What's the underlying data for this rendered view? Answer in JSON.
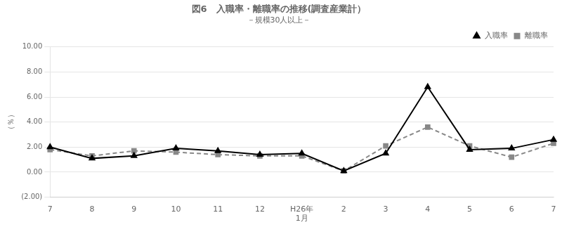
{
  "chart_data": {
    "type": "line",
    "title": "図6　入職率・離職率の推移(調査産業計）",
    "subtitle": "－規模30人以上－",
    "ylabel": "（％）",
    "categories": [
      "7",
      "8",
      "9",
      "10",
      "11",
      "12",
      "H26年\n1月",
      "2",
      "3",
      "4",
      "5",
      "6",
      "7"
    ],
    "series": [
      {
        "name": "入職率",
        "color": "#000000",
        "marker": "triangle",
        "line_style": "solid",
        "values": [
          2.0,
          1.1,
          1.3,
          1.9,
          1.7,
          1.4,
          1.5,
          0.1,
          1.5,
          6.8,
          1.8,
          1.9,
          2.6
        ]
      },
      {
        "name": "離職率",
        "color": "#888888",
        "marker": "square",
        "line_style": "dashed",
        "values": [
          1.8,
          1.3,
          1.7,
          1.6,
          1.4,
          1.3,
          1.3,
          0.1,
          2.1,
          3.6,
          2.1,
          1.2,
          2.3
        ]
      }
    ],
    "ylim": [
      -2.0,
      10.0
    ],
    "yticks": [
      {
        "value": -2.0,
        "label": "(2.00)"
      },
      {
        "value": 0.0,
        "label": "0.00"
      },
      {
        "value": 2.0,
        "label": "2.00"
      },
      {
        "value": 4.0,
        "label": "4.00"
      },
      {
        "value": 6.0,
        "label": "6.00"
      },
      {
        "value": 8.0,
        "label": "8.00"
      },
      {
        "value": 10.0,
        "label": "10.00"
      }
    ],
    "grid": "y",
    "legend": "upper right"
  }
}
